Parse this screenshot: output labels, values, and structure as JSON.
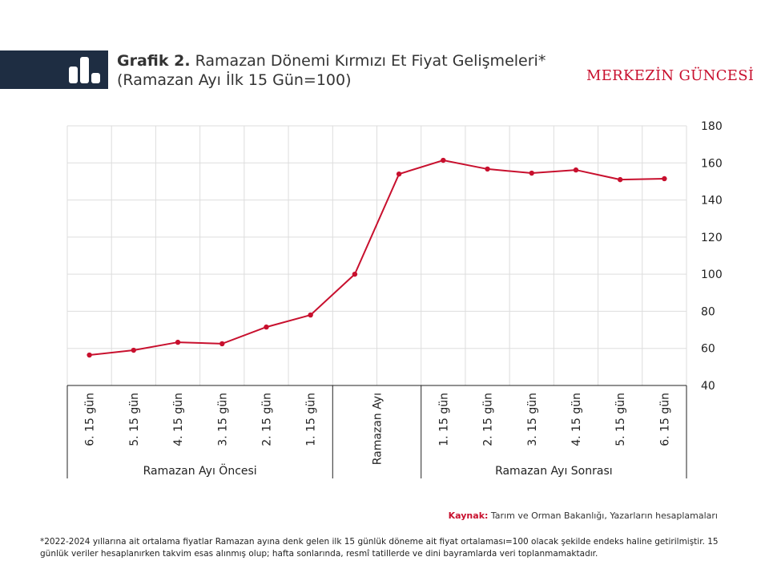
{
  "chart_data": {
    "type": "line",
    "title_label": "Grafik 2.",
    "title": "Ramazan Dönemi Kırmızı Et Fiyat Gelişmeleri*",
    "subtitle": "(Ramazan Ayı İlk 15 Gün=100)",
    "brand": "MERKEZİN GÜNCESİ",
    "source_label": "Kaynak:",
    "source": "Tarım ve Orman Bakanlığı, Yazarların hesaplamaları",
    "note": "*2022-2024 yıllarına ait ortalama fiyatlar Ramazan ayına denk gelen ilk 15 günlük döneme ait fiyat ortalaması=100 olacak şekilde endeks haline getirilmiştir. 15 günlük veriler hesaplanırken takvim esas alınmış olup; hafta sonlarında, resmî tatillerde ve dini bayramlarda veri toplanmamaktadır.",
    "categories": [
      "6. 15 gün",
      "5. 15 gün",
      "4. 15 gün",
      "3. 15 gün",
      "2. 15 gün",
      "1. 15 gün",
      "Ramazan Ayı",
      null,
      "1. 15 gün",
      "2. 15 gün",
      "3. 15 gün",
      "4. 15 gün",
      "5. 15 gün",
      "6. 15 gün"
    ],
    "groups": [
      "Ramazan Ayı Öncesi",
      "Ramazan Ayı Sonrası"
    ],
    "series": [
      {
        "name": "Kırmızı et",
        "color": "#c8102e",
        "values": [
          56.4,
          59,
          63.3,
          62.5,
          71.5,
          78,
          100,
          154,
          161.4,
          156.7,
          154.5,
          156.2,
          151,
          151.5
        ]
      }
    ],
    "ylim": [
      40,
      180
    ],
    "yticks": [
      40,
      60,
      80,
      100,
      120,
      140,
      160,
      180
    ],
    "grid": true
  }
}
